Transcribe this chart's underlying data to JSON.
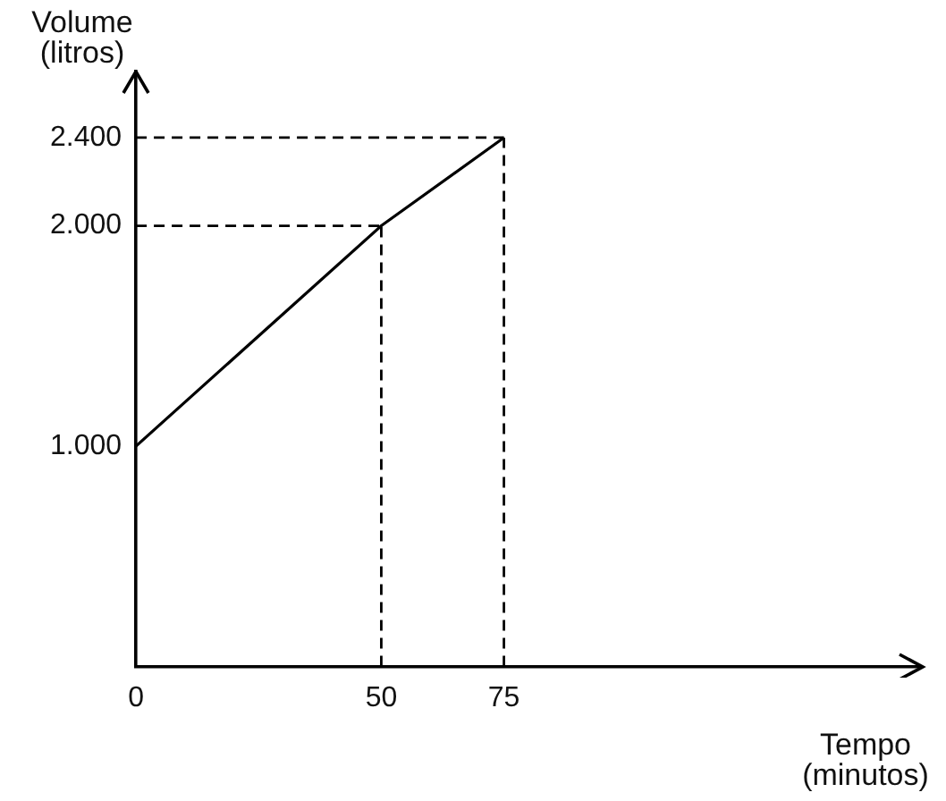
{
  "chart_data": {
    "type": "line",
    "xlabel": "Tempo (minutos)",
    "ylabel": "Volume (litros)",
    "x": [
      0,
      50,
      75
    ],
    "series": [
      {
        "color": "#000000",
        "values": [
          1000,
          2000,
          2400
        ]
      }
    ],
    "xlim": [
      0,
      160
    ],
    "ylim": [
      0,
      2700
    ],
    "xticks": [
      0,
      50,
      75
    ],
    "yticks": [
      {
        "value": 1000,
        "label": "1.000"
      },
      {
        "value": 2000,
        "label": "2.000"
      },
      {
        "value": 2400,
        "label": "2.400"
      }
    ],
    "ref_lines": [
      {
        "axis": "x",
        "value": 50,
        "line_style": "dashed"
      },
      {
        "axis": "x",
        "value": 75,
        "line_style": "dashed"
      },
      {
        "axis": "y",
        "value": 2000,
        "line_style": "dashed"
      },
      {
        "axis": "y",
        "value": 2400,
        "line_style": "dashed"
      }
    ],
    "grid": false,
    "legend": false,
    "marker": "none",
    "line_style": "solid"
  }
}
